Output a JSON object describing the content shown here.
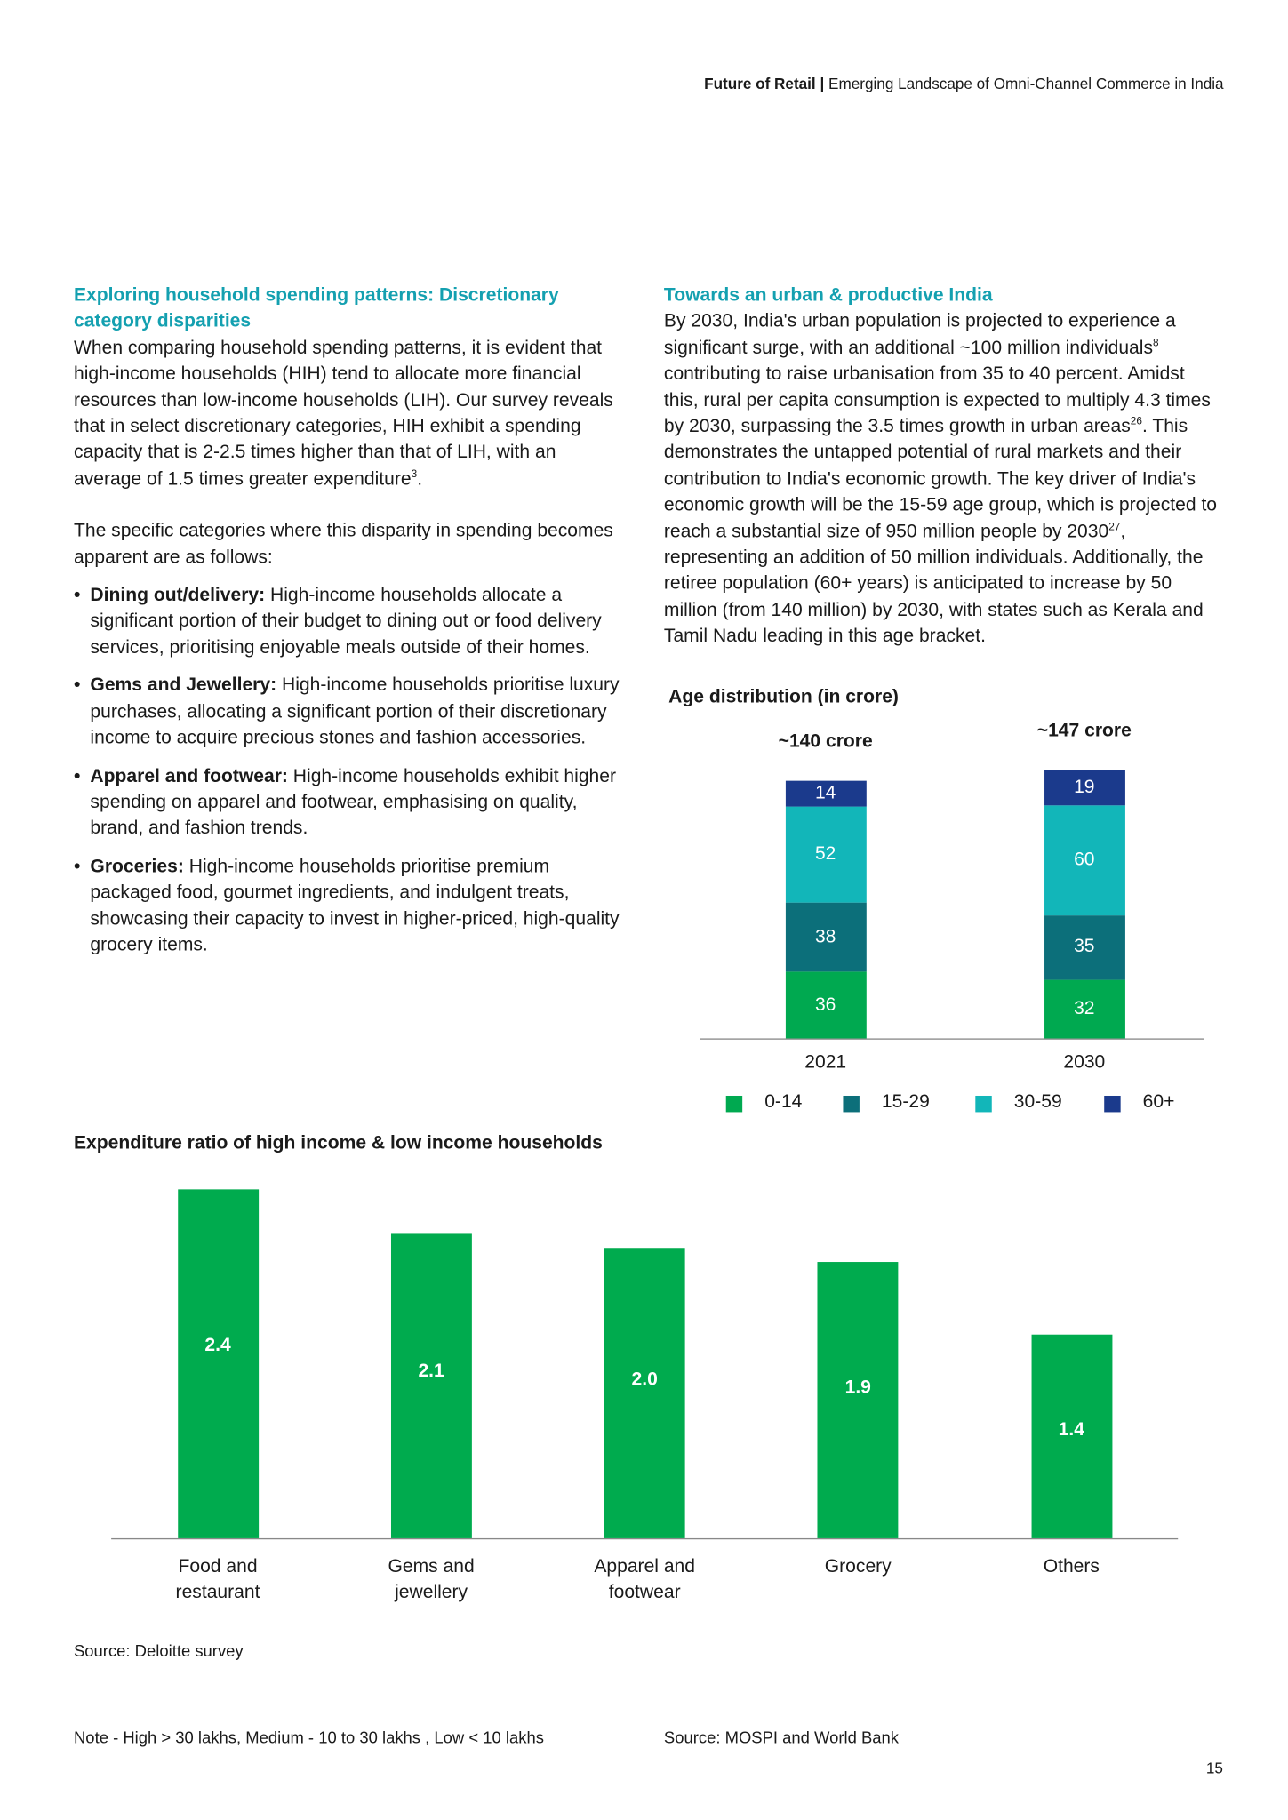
{
  "header": {
    "title": "Future of Retail",
    "separator": "|",
    "subtitle": "Emerging Landscape of Omni-Channel Commerce in India"
  },
  "left_column": {
    "heading": "Exploring household spending patterns: Discretionary category disparities",
    "paragraphs": [
      [
        "When comparing household spending patterns, it is evident that high-income households (HIH) tend to allocate more financial resources than low-income households (LIH). Our survey reveals that in select discretionary categories, HIH exhibit a spending capacity that is 2-2.5 times higher than that of LIH, with an average of 1.5 times greater expenditure",
        {
          "sup": "3"
        },
        "."
      ],
      [
        "The specific categories where this disparity in spending becomes apparent are as follows:"
      ]
    ],
    "bullets": [
      {
        "lead": "Dining out/delivery:",
        "text": "High-income households allocate a significant portion of their budget to dining out or food delivery services, prioritising enjoyable meals outside of their homes."
      },
      {
        "lead": "Gems and Jewellery:",
        "text": "High-income households prioritise luxury purchases, allocating a significant portion of their discretionary income to acquire precious stones and fashion accessories."
      },
      {
        "lead": "Apparel and footwear:",
        "text": "High-income households exhibit higher spending on apparel and footwear, emphasising on quality, brand, and fashion trends."
      },
      {
        "lead": "Groceries:",
        "text": "High-income households prioritise premium packaged food, gourmet ingredients, and indulgent treats, showcasing their capacity to invest in higher-priced, high-quality grocery items."
      }
    ]
  },
  "right_column": {
    "heading": "Towards an urban & productive India",
    "paragraph": [
      "By 2030, India's urban population is projected to experience a significant surge, with an additional ~100 million individuals",
      {
        "sup": "8"
      },
      " contributing to raise urbanisation from 35 to 40 percent. Amidst this, rural per capita consumption is expected to multiply 4.3 times by 2030, surpassing the 3.5 times growth in urban areas",
      {
        "sup": "26"
      },
      ". This demonstrates the untapped potential of rural markets and their contribution to India's economic growth. The key driver of India's economic growth will be the 15-59 age group, which is projected to reach a substantial size of 950 million people by 2030",
      {
        "sup": "27"
      },
      ", representing an addition of 50 million individuals. Additionally, the retiree population (60+ years) is anticipated to increase by 50 million (from 140 million) by 2030, with states such as Kerala and Tamil Nadu leading in this age bracket."
    ]
  },
  "chart_data": [
    {
      "type": "stacked_bar",
      "title": "Age distribution (in crore)",
      "categories": [
        "2021",
        "2030"
      ],
      "annotations": [
        "~140 crore",
        "~147 crore"
      ],
      "series": [
        {
          "name": "0-14",
          "color": "#00a950",
          "values": [
            36,
            32
          ]
        },
        {
          "name": "15-29",
          "color": "#0c6f7a",
          "values": [
            38,
            35
          ]
        },
        {
          "name": "30-59",
          "color": "#12b6b9",
          "values": [
            52,
            60
          ]
        },
        {
          "name": "60+",
          "color": "#1b3a8c",
          "values": [
            14,
            19
          ]
        }
      ]
    },
    {
      "type": "bar",
      "title": "Expenditure ratio of high income & low income households",
      "categories": [
        "Food and restaurant",
        "Gems and jewellery",
        "Apparel and footwear",
        "Grocery",
        "Others"
      ],
      "values": [
        2.4,
        2.1,
        2.0,
        1.9,
        1.4
      ],
      "value_labels": [
        "2.4",
        "2.1",
        "2.0",
        "1.9",
        "1.4"
      ],
      "color": "#00ab4e"
    }
  ],
  "chart_source": "Source: Deloitte survey",
  "footer": {
    "note": "Note - High > 30 lakhs, Medium - 10 to 30 lakhs , Low < 10 lakhs",
    "source": "Source: MOSPI and World Bank",
    "page_number": "15"
  }
}
